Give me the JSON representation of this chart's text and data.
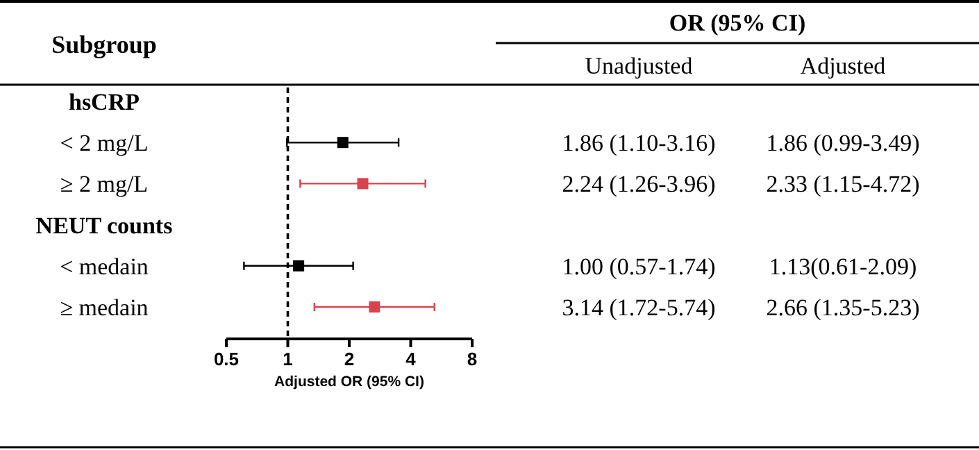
{
  "chart_data": {
    "type": "scatter",
    "orientation": "horizontal",
    "xlabel": "Adjusted OR (95% CI)",
    "log": "x",
    "xlim": [
      0.5,
      8
    ],
    "xticks": [
      0.5,
      1,
      2,
      4,
      8
    ],
    "marker": "square",
    "categories": [
      "hsCRP",
      "< 2 mg/L",
      "≥ 2 mg/L",
      "NEUT counts",
      "< medain",
      "≥ medain"
    ],
    "values": [
      null,
      1.86,
      2.33,
      null,
      1.13,
      2.66
    ],
    "errors": [
      null,
      [
        0.99,
        3.49
      ],
      [
        1.15,
        4.72
      ],
      null,
      [
        0.61,
        2.09
      ],
      [
        1.35,
        5.23
      ]
    ],
    "colors": [
      null,
      "#000000",
      "#d9434b",
      null,
      "#000000",
      "#d9434b"
    ],
    "value_labels": [
      null,
      "1.86 (0.99-3.49)",
      "2.33 (1.15-4.72)",
      null,
      "1.13(0.61-2.09)",
      "2.66 (1.35-5.23)"
    ],
    "ref_lines": [
      {
        "axis": "x",
        "value": 1,
        "line_style": "dashed",
        "color": "#000000"
      }
    ],
    "annotations": [
      "Subgroup",
      "OR (95% CI)",
      "Unadjusted",
      "Adjusted",
      null,
      "1.86 (1.10-3.16)",
      "2.24 (1.26-3.96)",
      null,
      "1.00 (0.57-1.74)",
      "3.14 (1.72-5.74)"
    ]
  }
}
